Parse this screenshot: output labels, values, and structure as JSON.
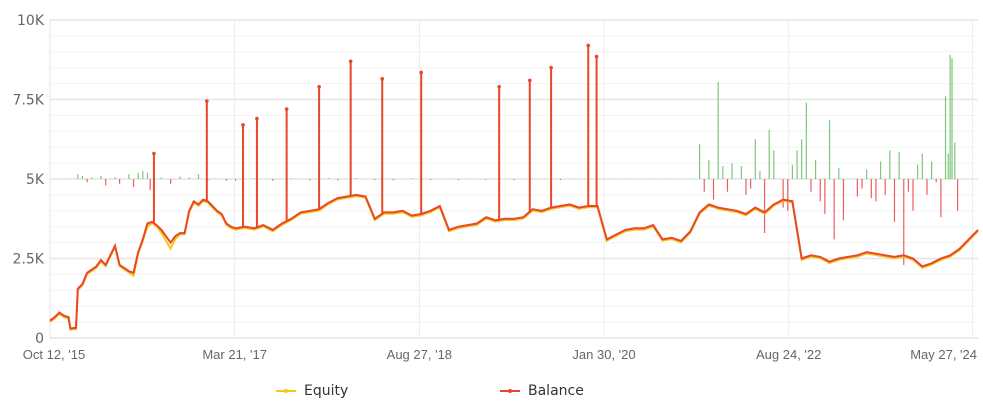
{
  "chart_data": {
    "type": "line",
    "title": "",
    "xlabel": "",
    "ylabel": "",
    "ylim": [
      0,
      10000
    ],
    "grid": true,
    "legend_position": "bottom",
    "y_ticks": [
      {
        "value": 0,
        "label": "0"
      },
      {
        "value": 2500,
        "label": "2.5K"
      },
      {
        "value": 5000,
        "label": "5K"
      },
      {
        "value": 7500,
        "label": "7.5K"
      },
      {
        "value": 10000,
        "label": "10K"
      }
    ],
    "x_ticks": [
      {
        "label": "Oct 12, '15",
        "pos": 0.0
      },
      {
        "label": "Mar 21, '17",
        "pos": 0.199
      },
      {
        "label": "Aug 27, '18",
        "pos": 0.398
      },
      {
        "label": "Jan 30, '20",
        "pos": 0.597
      },
      {
        "label": "Aug 24, '22",
        "pos": 0.796
      },
      {
        "label": "May 27, '24",
        "pos": 0.994
      }
    ],
    "series": [
      {
        "name": "Equity",
        "color": "#f5c518",
        "x": [
          0.0,
          0.005,
          0.01,
          0.015,
          0.02,
          0.022,
          0.028,
          0.03,
          0.035,
          0.04,
          0.045,
          0.05,
          0.055,
          0.06,
          0.065,
          0.07,
          0.075,
          0.08,
          0.085,
          0.09,
          0.095,
          0.1,
          0.105,
          0.11,
          0.115,
          0.12,
          0.125,
          0.13,
          0.135,
          0.14,
          0.145,
          0.15,
          0.155,
          0.16,
          0.165,
          0.17,
          0.175,
          0.18,
          0.185,
          0.19,
          0.195,
          0.2,
          0.21,
          0.22,
          0.23,
          0.24,
          0.25,
          0.26,
          0.27,
          0.28,
          0.29,
          0.3,
          0.31,
          0.32,
          0.33,
          0.34,
          0.35,
          0.36,
          0.37,
          0.38,
          0.39,
          0.4,
          0.41,
          0.42,
          0.43,
          0.44,
          0.45,
          0.46,
          0.47,
          0.48,
          0.49,
          0.5,
          0.51,
          0.52,
          0.53,
          0.54,
          0.55,
          0.56,
          0.57,
          0.58,
          0.59,
          0.6,
          0.61,
          0.62,
          0.63,
          0.64,
          0.65,
          0.66,
          0.67,
          0.68,
          0.69,
          0.7,
          0.71,
          0.72,
          0.73,
          0.74,
          0.75,
          0.76,
          0.77,
          0.78,
          0.79,
          0.8,
          0.81,
          0.82,
          0.83,
          0.84,
          0.85,
          0.86,
          0.87,
          0.88,
          0.89,
          0.9,
          0.91,
          0.92,
          0.93,
          0.94,
          0.95,
          0.96,
          0.97,
          0.98,
          0.99,
          1.0
        ],
        "values": [
          550,
          650,
          800,
          700,
          650,
          300,
          320,
          1550,
          1700,
          2050,
          2150,
          2250,
          2450,
          2300,
          2600,
          2900,
          2300,
          2200,
          2100,
          2000,
          2700,
          3100,
          3550,
          3650,
          3550,
          3350,
          3100,
          2850,
          3150,
          3300,
          3300,
          4000,
          4300,
          4200,
          4350,
          4300,
          4150,
          4000,
          3900,
          3600,
          3500,
          3450,
          3500,
          3450,
          3550,
          3400,
          3600,
          3750,
          3950,
          4000,
          4050,
          4250,
          4400,
          4450,
          4500,
          4450,
          3750,
          3950,
          3950,
          4000,
          3850,
          3900,
          4000,
          4150,
          3400,
          3500,
          3550,
          3600,
          3800,
          3700,
          3750,
          3750,
          3800,
          4050,
          4000,
          4100,
          4150,
          4200,
          4100,
          4150,
          4150,
          3100,
          3250,
          3400,
          3450,
          3450,
          3550,
          3100,
          3150,
          3050,
          3350,
          3950,
          4200,
          4100,
          4050,
          4000,
          3900,
          4100,
          3950,
          4200,
          4350,
          4300,
          2500,
          2600,
          2550,
          2400,
          2500,
          2550,
          2600,
          2700,
          2650,
          2600,
          2550,
          2600,
          2500,
          2250,
          2350,
          2500,
          2600,
          2800,
          3100,
          3400
        ]
      },
      {
        "name": "Balance",
        "color": "#e8472a",
        "x": [
          0.0,
          0.005,
          0.01,
          0.015,
          0.02,
          0.022,
          0.028,
          0.03,
          0.035,
          0.04,
          0.045,
          0.05,
          0.055,
          0.06,
          0.065,
          0.07,
          0.075,
          0.08,
          0.085,
          0.09,
          0.095,
          0.1,
          0.105,
          0.11,
          0.115,
          0.12,
          0.125,
          0.13,
          0.135,
          0.14,
          0.145,
          0.15,
          0.155,
          0.16,
          0.165,
          0.17,
          0.175,
          0.18,
          0.185,
          0.19,
          0.195,
          0.2,
          0.21,
          0.22,
          0.23,
          0.24,
          0.25,
          0.26,
          0.27,
          0.28,
          0.29,
          0.3,
          0.31,
          0.32,
          0.33,
          0.34,
          0.35,
          0.36,
          0.37,
          0.38,
          0.39,
          0.4,
          0.41,
          0.42,
          0.43,
          0.44,
          0.45,
          0.46,
          0.47,
          0.48,
          0.49,
          0.5,
          0.51,
          0.52,
          0.53,
          0.54,
          0.55,
          0.56,
          0.57,
          0.58,
          0.59,
          0.6,
          0.61,
          0.62,
          0.63,
          0.64,
          0.65,
          0.66,
          0.67,
          0.68,
          0.69,
          0.7,
          0.71,
          0.72,
          0.73,
          0.74,
          0.75,
          0.76,
          0.77,
          0.78,
          0.79,
          0.8,
          0.81,
          0.82,
          0.83,
          0.84,
          0.85,
          0.86,
          0.87,
          0.88,
          0.89,
          0.9,
          0.91,
          0.92,
          0.93,
          0.94,
          0.95,
          0.96,
          0.97,
          0.98,
          0.99,
          1.0
        ],
        "values": [
          550,
          650,
          800,
          700,
          650,
          300,
          320,
          1550,
          1700,
          2050,
          2150,
          2250,
          2450,
          2300,
          2600,
          2900,
          2300,
          2200,
          2100,
          2050,
          2700,
          3100,
          3600,
          3650,
          3550,
          3400,
          3200,
          3000,
          3200,
          3300,
          3300,
          4000,
          4300,
          4200,
          4350,
          4300,
          4150,
          4000,
          3900,
          3600,
          3500,
          3450,
          3500,
          3450,
          3550,
          3400,
          3600,
          3750,
          3950,
          4000,
          4050,
          4250,
          4400,
          4450,
          4500,
          4450,
          3750,
          3950,
          3950,
          4000,
          3850,
          3900,
          4000,
          4150,
          3400,
          3500,
          3550,
          3600,
          3800,
          3700,
          3750,
          3750,
          3800,
          4050,
          4000,
          4100,
          4150,
          4200,
          4100,
          4150,
          4150,
          3100,
          3250,
          3400,
          3450,
          3450,
          3550,
          3100,
          3150,
          3050,
          3350,
          3950,
          4200,
          4100,
          4050,
          4000,
          3900,
          4100,
          3950,
          4200,
          4350,
          4300,
          2500,
          2600,
          2550,
          2400,
          2500,
          2550,
          2600,
          2700,
          2650,
          2600,
          2550,
          2600,
          2500,
          2250,
          2350,
          2500,
          2600,
          2800,
          3100,
          3400
        ]
      }
    ],
    "balance_spikes": [
      {
        "x": 0.112,
        "value": 5800
      },
      {
        "x": 0.169,
        "value": 7450
      },
      {
        "x": 0.208,
        "value": 6700
      },
      {
        "x": 0.223,
        "value": 6900
      },
      {
        "x": 0.255,
        "value": 7200
      },
      {
        "x": 0.29,
        "value": 7900
      },
      {
        "x": 0.324,
        "value": 8700
      },
      {
        "x": 0.358,
        "value": 8150
      },
      {
        "x": 0.4,
        "value": 8350
      },
      {
        "x": 0.484,
        "value": 7900
      },
      {
        "x": 0.517,
        "value": 8100
      },
      {
        "x": 0.54,
        "value": 8500
      },
      {
        "x": 0.58,
        "value": 9200
      },
      {
        "x": 0.589,
        "value": 8850
      }
    ],
    "histogram_baseline": 5000,
    "histogram_up_color": "#5cb85c",
    "histogram_down_color": "#e8353a",
    "histogram_bars": [
      [
        0.03,
        5150
      ],
      [
        0.035,
        5100
      ],
      [
        0.04,
        4900
      ],
      [
        0.045,
        5050
      ],
      [
        0.055,
        5100
      ],
      [
        0.06,
        4800
      ],
      [
        0.07,
        5050
      ],
      [
        0.075,
        4850
      ],
      [
        0.085,
        5150
      ],
      [
        0.09,
        4750
      ],
      [
        0.095,
        5200
      ],
      [
        0.1,
        5250
      ],
      [
        0.105,
        5200
      ],
      [
        0.108,
        4650
      ],
      [
        0.12,
        5050
      ],
      [
        0.13,
        4850
      ],
      [
        0.14,
        5080
      ],
      [
        0.15,
        5050
      ],
      [
        0.16,
        5150
      ],
      [
        0.17,
        4950
      ],
      [
        0.19,
        4950
      ],
      [
        0.2,
        4950
      ],
      [
        0.22,
        5020
      ],
      [
        0.24,
        4950
      ],
      [
        0.26,
        5020
      ],
      [
        0.28,
        4960
      ],
      [
        0.3,
        5030
      ],
      [
        0.31,
        4960
      ],
      [
        0.33,
        5030
      ],
      [
        0.35,
        4970
      ],
      [
        0.37,
        4960
      ],
      [
        0.39,
        5020
      ],
      [
        0.41,
        4970
      ],
      [
        0.44,
        4970
      ],
      [
        0.47,
        4980
      ],
      [
        0.5,
        4970
      ],
      [
        0.52,
        5020
      ],
      [
        0.55,
        4970
      ],
      [
        0.58,
        4980
      ],
      [
        0.7,
        6100
      ],
      [
        0.705,
        4600
      ],
      [
        0.71,
        5600
      ],
      [
        0.715,
        4350
      ],
      [
        0.72,
        8050
      ],
      [
        0.725,
        5400
      ],
      [
        0.73,
        4600
      ],
      [
        0.735,
        5500
      ],
      [
        0.745,
        5400
      ],
      [
        0.75,
        4500
      ],
      [
        0.755,
        4700
      ],
      [
        0.76,
        6250
      ],
      [
        0.765,
        5250
      ],
      [
        0.77,
        3300
      ],
      [
        0.775,
        6550
      ],
      [
        0.78,
        5900
      ],
      [
        0.79,
        4100
      ],
      [
        0.795,
        4000
      ],
      [
        0.8,
        5450
      ],
      [
        0.805,
        5900
      ],
      [
        0.81,
        6250
      ],
      [
        0.815,
        7400
      ],
      [
        0.82,
        4600
      ],
      [
        0.825,
        5600
      ],
      [
        0.83,
        4300
      ],
      [
        0.835,
        3900
      ],
      [
        0.84,
        6850
      ],
      [
        0.845,
        3100
      ],
      [
        0.85,
        5350
      ],
      [
        0.855,
        3700
      ],
      [
        0.87,
        4450
      ],
      [
        0.875,
        4700
      ],
      [
        0.88,
        5300
      ],
      [
        0.885,
        4400
      ],
      [
        0.89,
        4300
      ],
      [
        0.895,
        5550
      ],
      [
        0.9,
        4500
      ],
      [
        0.905,
        5900
      ],
      [
        0.91,
        3650
      ],
      [
        0.915,
        5850
      ],
      [
        0.92,
        2300
      ],
      [
        0.925,
        4600
      ],
      [
        0.93,
        4000
      ],
      [
        0.935,
        5450
      ],
      [
        0.94,
        5800
      ],
      [
        0.945,
        4500
      ],
      [
        0.95,
        5550
      ],
      [
        0.955,
        4900
      ],
      [
        0.96,
        3800
      ],
      [
        0.965,
        7600
      ],
      [
        0.968,
        5800
      ],
      [
        0.97,
        8900
      ],
      [
        0.972,
        8800
      ],
      [
        0.975,
        6150
      ],
      [
        0.978,
        4000
      ]
    ]
  },
  "legend": {
    "items": [
      {
        "label": "Equity",
        "color": "#f5c518"
      },
      {
        "label": "Balance",
        "color": "#e8472a"
      }
    ]
  }
}
